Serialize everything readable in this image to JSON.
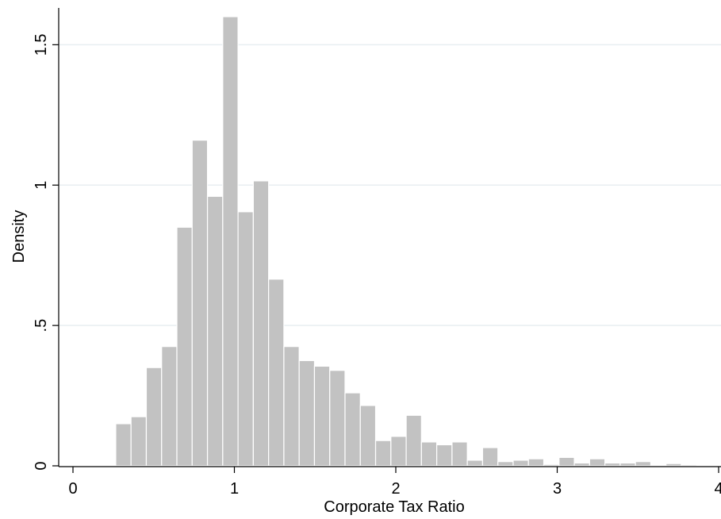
{
  "chart_data": {
    "type": "bar",
    "subtype": "histogram",
    "title": "",
    "xlabel": "Corporate Tax Ratio",
    "ylabel": "Density",
    "xlim": [
      0,
      4
    ],
    "ylim": [
      0,
      1.6
    ],
    "x_ticks": [
      0,
      1,
      2,
      3,
      4
    ],
    "x_tick_labels": [
      "0",
      "1",
      "2",
      "3",
      "4"
    ],
    "y_ticks": [
      0,
      0.5,
      1,
      1.5
    ],
    "y_tick_labels": [
      "0",
      ".5",
      "1",
      "1.5"
    ],
    "grid": "horizontal",
    "bar_color": "#c2c2c2",
    "bar_edge_color": "#ffffff",
    "grid_color": "#e8eef1",
    "bin_width": 0.0947,
    "bin_start": 0.265,
    "values": [
      0.15,
      0.175,
      0.35,
      0.425,
      0.85,
      1.16,
      0.96,
      1.6,
      0.905,
      1.015,
      0.665,
      0.425,
      0.375,
      0.355,
      0.34,
      0.26,
      0.215,
      0.09,
      0.105,
      0.18,
      0.085,
      0.075,
      0.085,
      0.02,
      0.065,
      0.015,
      0.02,
      0.025,
      0.005,
      0.03,
      0.01,
      0.025,
      0.01,
      0.01,
      0.015,
      0.0,
      0.008,
      0.004
    ]
  }
}
